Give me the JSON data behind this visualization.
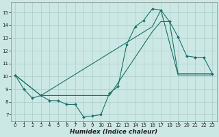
{
  "xlabel": "Humidex (Indice chaleur)",
  "xlim": [
    -0.5,
    23.5
  ],
  "ylim": [
    6.5,
    15.8
  ],
  "yticks": [
    7,
    8,
    9,
    10,
    11,
    12,
    13,
    14,
    15
  ],
  "xticks": [
    0,
    1,
    2,
    3,
    4,
    5,
    6,
    7,
    8,
    9,
    10,
    11,
    12,
    13,
    14,
    15,
    16,
    17,
    18,
    19,
    20,
    21,
    22,
    23
  ],
  "bg_color": "#cce8e4",
  "grid_color": "#aaccca",
  "line_color": "#1a7068",
  "s1_x": [
    0,
    1,
    2,
    3,
    4,
    5,
    6,
    7,
    8,
    9,
    10,
    11,
    12,
    13,
    14,
    15,
    16,
    17,
    18,
    19,
    20,
    21,
    22,
    23
  ],
  "s1_y": [
    10.1,
    9.0,
    8.3,
    8.5,
    8.1,
    8.1,
    7.8,
    7.8,
    6.8,
    6.9,
    7.0,
    8.7,
    9.2,
    12.5,
    13.9,
    14.4,
    15.3,
    15.2,
    14.3,
    13.1,
    11.6,
    11.5,
    11.5,
    10.2
  ],
  "s2_x": [
    0,
    3,
    11,
    13,
    14,
    15,
    16,
    17,
    18,
    19,
    20,
    21,
    22,
    23
  ],
  "s2_y": [
    10.1,
    8.5,
    8.5,
    10.5,
    11.5,
    12.5,
    13.5,
    14.3,
    14.3,
    10.2,
    10.2,
    10.2,
    10.2,
    10.2
  ],
  "s3_x": [
    0,
    3,
    16,
    17,
    19,
    20,
    21,
    22,
    23
  ],
  "s3_y": [
    10.1,
    8.5,
    13.9,
    15.2,
    10.1,
    10.1,
    10.1,
    10.1,
    10.1
  ]
}
